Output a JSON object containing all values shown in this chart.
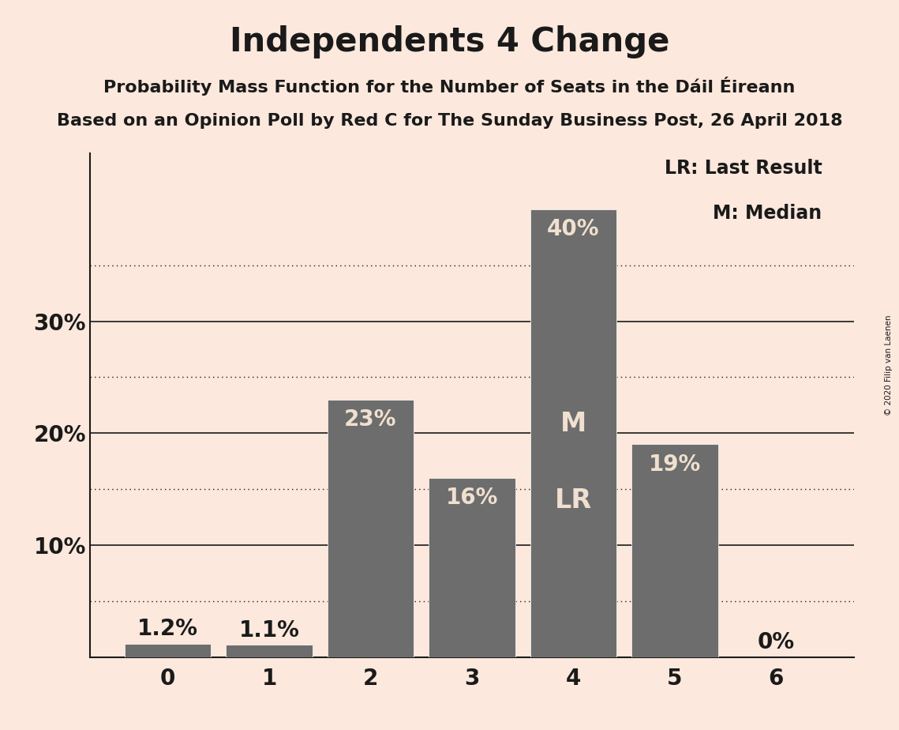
{
  "title": "Independents 4 Change",
  "subtitle1": "Probability Mass Function for the Number of Seats in the Dáil Éireann",
  "subtitle2": "Based on an Opinion Poll by Red C for The Sunday Business Post, 26 April 2018",
  "copyright": "© 2020 Filip van Laenen",
  "categories": [
    0,
    1,
    2,
    3,
    4,
    5,
    6
  ],
  "values": [
    1.2,
    1.1,
    23,
    16,
    40,
    19,
    0
  ],
  "bar_color": "#6d6d6d",
  "background_color": "#fce8dc",
  "label_color_outside": "#1a1a1a",
  "label_color_inside": "#f0e0d0",
  "bar_labels": [
    "1.2%",
    "1.1%",
    "23%",
    "16%",
    "40%",
    "19%",
    "0%"
  ],
  "median_seat": 4,
  "last_result_seat": 4,
  "legend_lr": "LR: Last Result",
  "legend_m": "M: Median",
  "ylim": [
    0,
    45
  ],
  "solid_yticks": [
    10,
    20,
    30
  ],
  "dotted_yticks": [
    5,
    15,
    25,
    35
  ],
  "ytick_labels_solid": [
    "10%",
    "20%",
    "30%"
  ],
  "grid_dotted_color": "#1a1a1a",
  "axis_color": "#1a1a1a",
  "title_fontsize": 30,
  "subtitle_fontsize": 16,
  "label_fontsize": 20,
  "tick_fontsize": 20,
  "legend_fontsize": 17
}
